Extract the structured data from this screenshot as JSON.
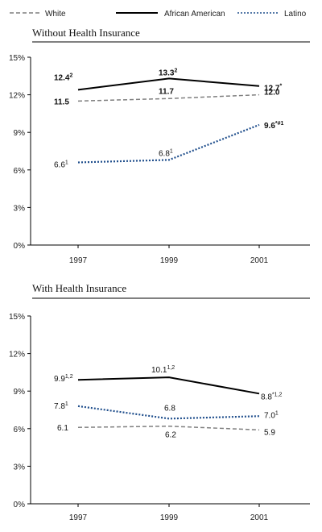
{
  "legend": [
    {
      "name": "White",
      "color": "#7f7f7f",
      "dash": "dashed"
    },
    {
      "name": "African American",
      "color": "#000000",
      "dash": "solid"
    },
    {
      "name": "Latino",
      "color": "#1f4e8c",
      "dash": "dotted"
    }
  ],
  "chart_data": [
    {
      "type": "line",
      "title": "Without Health Insurance",
      "categories": [
        "1997",
        "1999",
        "2001"
      ],
      "ylim": [
        0,
        15
      ],
      "yticks": [
        "0%",
        "3%",
        "6%",
        "9%",
        "12%",
        "15%"
      ],
      "grid": false,
      "legend_position": "top",
      "series": [
        {
          "name": "White",
          "values": [
            11.5,
            11.7,
            12.0
          ],
          "labels": [
            {
              "text": "11.5",
              "sup": ""
            },
            {
              "text": "11.7",
              "sup": ""
            },
            {
              "text": "12.0",
              "sup": ""
            }
          ]
        },
        {
          "name": "African American",
          "values": [
            12.4,
            13.3,
            12.7
          ],
          "labels": [
            {
              "text": "12.4",
              "sup": "2"
            },
            {
              "text": "13.3",
              "sup": "2"
            },
            {
              "text": "12.7",
              "sup": "*"
            }
          ]
        },
        {
          "name": "Latino",
          "values": [
            6.6,
            6.8,
            9.6
          ],
          "labels": [
            {
              "text": "6.6",
              "sup": "1"
            },
            {
              "text": "6.8",
              "sup": "1"
            },
            {
              "text": "9.6",
              "sup": "*#1"
            }
          ]
        }
      ]
    },
    {
      "type": "line",
      "title": "With Health Insurance",
      "categories": [
        "1997",
        "1999",
        "2001"
      ],
      "ylim": [
        0,
        15
      ],
      "yticks": [
        "0%",
        "3%",
        "6%",
        "9%",
        "12%",
        "15%"
      ],
      "grid": false,
      "legend_position": "top",
      "series": [
        {
          "name": "White",
          "values": [
            6.1,
            6.2,
            5.9
          ],
          "labels": [
            {
              "text": "6.1",
              "sup": ""
            },
            {
              "text": "6.2",
              "sup": ""
            },
            {
              "text": "5.9",
              "sup": ""
            }
          ]
        },
        {
          "name": "African American",
          "values": [
            9.9,
            10.1,
            8.8
          ],
          "labels": [
            {
              "text": "9.9",
              "sup": "1,2"
            },
            {
              "text": "10.1",
              "sup": "1,2"
            },
            {
              "text": "8.8",
              "sup": "*1,2"
            }
          ]
        },
        {
          "name": "Latino",
          "values": [
            7.8,
            6.8,
            7.0
          ],
          "labels": [
            {
              "text": "7.8",
              "sup": "1"
            },
            {
              "text": "6.8",
              "sup": ""
            },
            {
              "text": "7.0",
              "sup": "1"
            }
          ]
        }
      ]
    }
  ]
}
